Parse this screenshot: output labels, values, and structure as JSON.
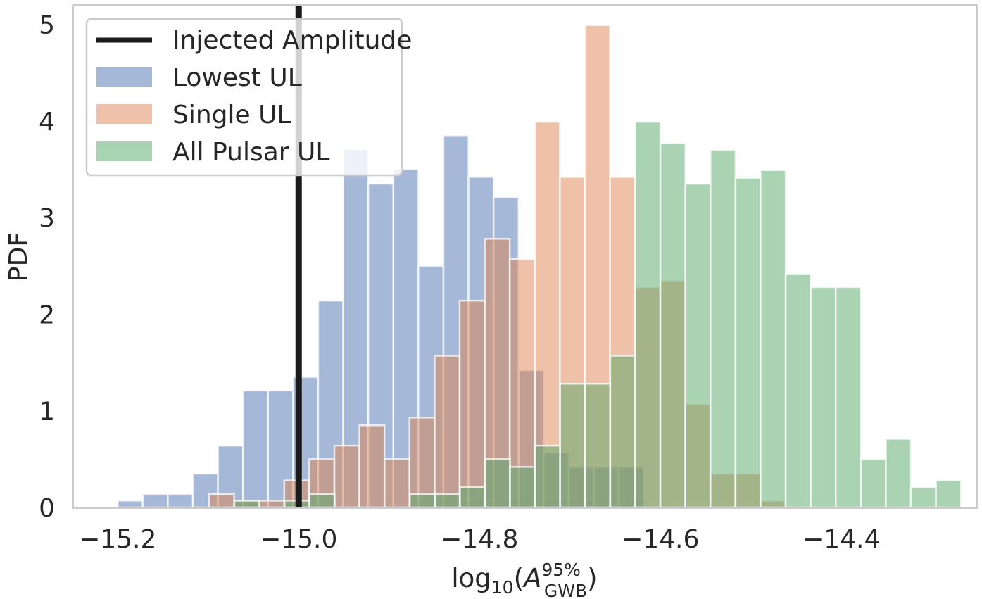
{
  "chart_data": {
    "type": "histogram",
    "title": "",
    "xlabel": {
      "prefix": "log",
      "sub1": "10",
      "open": "(",
      "var": "A",
      "sup": "95%",
      "sub2": "GWB",
      "close": ")"
    },
    "ylabel": "PDF",
    "xlim": [
      -15.25,
      -14.25
    ],
    "ylim": [
      0,
      5.2
    ],
    "grid": false,
    "legend_location": "upper-left",
    "xticks": [
      -15.2,
      -15.0,
      -14.8,
      -14.6,
      -14.4
    ],
    "xtick_labels": [
      "−15.2",
      "−15.0",
      "−14.8",
      "−14.6",
      "−14.4"
    ],
    "yticks": [
      0,
      1,
      2,
      3,
      4,
      5
    ],
    "ytick_labels": [
      "0",
      "1",
      "2",
      "3",
      "4",
      "5"
    ],
    "injected_amplitude": {
      "name": "Injected Amplitude",
      "x": -15.0,
      "color": "#1a1a1a"
    },
    "series": [
      {
        "name": "Lowest UL",
        "color": "#4c72b0",
        "alpha": 0.5,
        "bin_start": -15.2,
        "bin_width": 0.0277,
        "values": [
          0.07,
          0.14,
          0.14,
          0.35,
          0.64,
          1.21,
          1.21,
          1.35,
          2.14,
          3.71,
          3.35,
          3.5,
          2.5,
          3.85,
          3.42,
          3.21,
          1.42,
          0.57,
          0.42,
          0.42,
          0.42
        ]
      },
      {
        "name": "Single UL",
        "color": "#dd8452",
        "alpha": 0.5,
        "bin_start": -15.099,
        "bin_width": 0.0277,
        "values": [
          0.14,
          0.07,
          0.07,
          0.28,
          0.5,
          0.64,
          0.85,
          0.5,
          0.93,
          1.57,
          2.14,
          2.78,
          2.57,
          3.99,
          3.42,
          4.99,
          3.42,
          2.28,
          2.35,
          1.07,
          0.35,
          0.35,
          0.07
        ]
      },
      {
        "name": "All Pulsar UL",
        "color": "#55a868",
        "alpha": 0.5,
        "bin_start": -15.071,
        "bin_width": 0.0277,
        "values": [
          0.07,
          0,
          0.07,
          0.14,
          0,
          0,
          0,
          0.14,
          0.14,
          0.21,
          0.5,
          0.42,
          0.64,
          1.28,
          1.28,
          1.57,
          3.99,
          3.77,
          3.35,
          3.7,
          3.41,
          3.49,
          2.42,
          2.28,
          2.28,
          0.5,
          0.71,
          0.21,
          0.28
        ]
      }
    ]
  }
}
